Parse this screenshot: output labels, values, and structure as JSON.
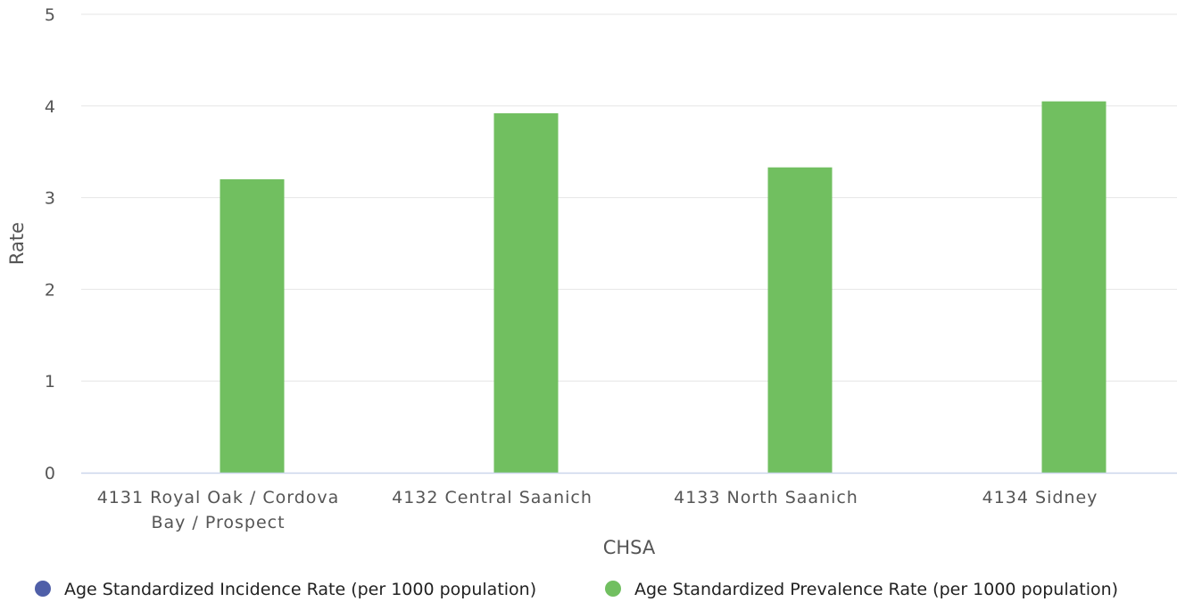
{
  "chart_data": {
    "type": "bar",
    "title": "",
    "xlabel": "CHSA",
    "ylabel": "Rate",
    "ylim": [
      0,
      5
    ],
    "yticks": [
      0,
      1,
      2,
      3,
      4,
      5
    ],
    "grid": true,
    "legend_position": "bottom",
    "categories": [
      [
        "4131 Royal Oak / Cordova",
        "Bay / Prospect"
      ],
      [
        "4132 Central Saanich"
      ],
      [
        "4133 North Saanich"
      ],
      [
        "4134 Sidney"
      ]
    ],
    "series": [
      {
        "name": "Age Standardized Incidence Rate (per 1000 population)",
        "color": "#4f5fa8",
        "values": [
          0,
          0,
          0,
          0
        ]
      },
      {
        "name": "Age Standardized Prevalence Rate (per 1000 population)",
        "color": "#71bf60",
        "values": [
          3.2,
          3.92,
          3.33,
          4.05
        ]
      }
    ]
  }
}
